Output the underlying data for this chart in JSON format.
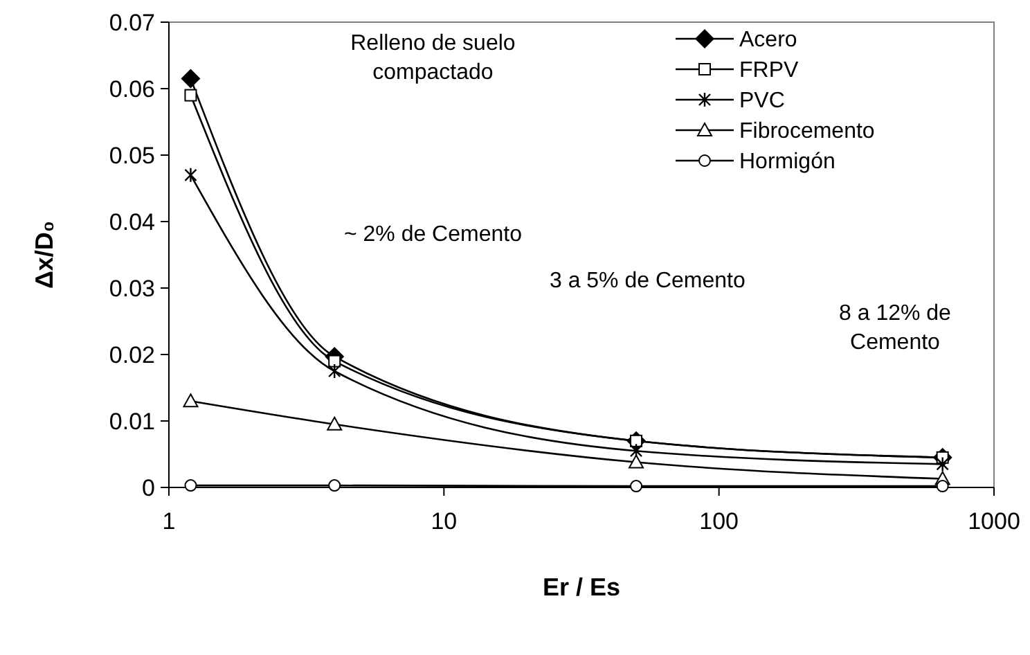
{
  "chart_data": {
    "type": "line",
    "xlabel": "Er / Es",
    "ylabel": "Δx/D₀",
    "log": "x",
    "xlim": [
      1,
      1000
    ],
    "xticks": [
      1,
      10,
      100,
      1000
    ],
    "ylim": [
      0,
      0.07
    ],
    "yticks": [
      0,
      0.01,
      0.02,
      0.03,
      0.04,
      0.05,
      0.06,
      0.07
    ],
    "grid": false,
    "legend": "top right",
    "line_style": "solid",
    "x": [
      1.2,
      4,
      50,
      650
    ],
    "series": [
      {
        "name": "Acero",
        "color": "#000000",
        "marker": "diamond",
        "values": [
          0.0615,
          0.0197,
          0.007,
          0.0045
        ]
      },
      {
        "name": "FRPV",
        "color": "#000000",
        "marker": "square",
        "values": [
          0.059,
          0.019,
          0.007,
          0.0045
        ]
      },
      {
        "name": "PVC",
        "color": "#000000",
        "marker": "cross",
        "values": [
          0.047,
          0.0175,
          0.0055,
          0.0035
        ]
      },
      {
        "name": "Fibrocemento",
        "color": "#000000",
        "marker": "triangle",
        "values": [
          0.013,
          0.0095,
          0.0038,
          0.0013
        ]
      },
      {
        "name": "Hormigón",
        "color": "#000000",
        "marker": "circle",
        "values": [
          0.0003,
          0.0003,
          0.0002,
          0.0002
        ]
      }
    ],
    "annotations": [
      "Relleno de suelo\ncompactado",
      "~ 2% de Cemento",
      "3 a 5% de Cemento",
      "8 a 12% de\nCemento"
    ]
  }
}
